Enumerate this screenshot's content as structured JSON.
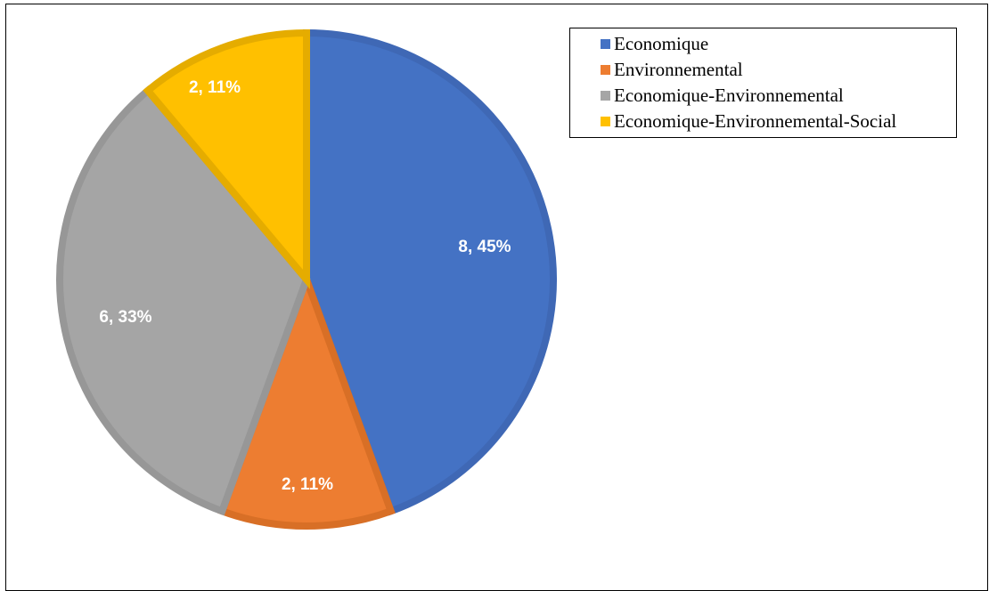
{
  "chart_data": {
    "type": "pie",
    "categories": [
      "Economique",
      "Environnemental",
      "Economique-Environnemental",
      "Economique-Environnemental-Social"
    ],
    "values": [
      8,
      2,
      6,
      2
    ],
    "data_labels": [
      "8, 45%",
      "2, 11%",
      "6, 33%",
      "2, 11%"
    ],
    "colors": [
      "#4472C4",
      "#ED7D31",
      "#A5A5A5",
      "#FFC000"
    ],
    "border_colors": [
      "#3F68B5",
      "#D86F26",
      "#979797",
      "#E5AC00"
    ],
    "start_angle": "12 o'clock, clockwise",
    "legend_position": "top-right",
    "title": ""
  }
}
